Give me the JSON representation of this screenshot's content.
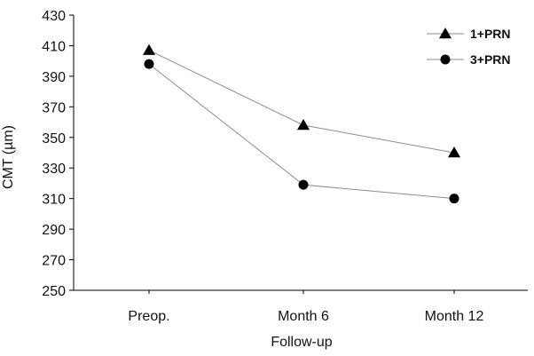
{
  "chart_data": {
    "type": "line",
    "title": "",
    "xlabel": "Follow-up",
    "ylabel": "CMT (µm)",
    "categories": [
      "Preop.",
      "Month 6",
      "Month 12"
    ],
    "ylim": [
      250,
      430
    ],
    "yticks": [
      250,
      270,
      290,
      310,
      330,
      350,
      370,
      390,
      410,
      430
    ],
    "grid": false,
    "legend_position": "top-right",
    "series": [
      {
        "name": "1+PRN",
        "marker": "triangle",
        "color": "#000000",
        "line_color": "#8c8c8c",
        "values": [
          407,
          358,
          340
        ]
      },
      {
        "name": "3+PRN",
        "marker": "circle",
        "color": "#000000",
        "line_color": "#8c8c8c",
        "values": [
          398,
          319,
          310
        ]
      }
    ]
  }
}
